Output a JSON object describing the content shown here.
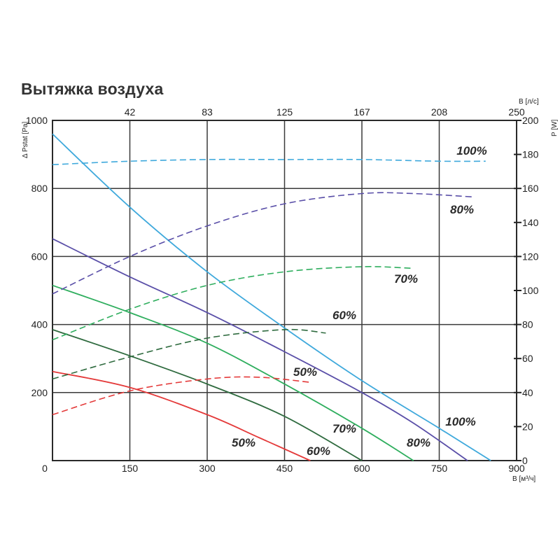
{
  "title": "Вытяжка воздуха",
  "chart_data": {
    "type": "line",
    "xlabel": "В [м³/ч]",
    "x2label": "В [л/с]",
    "ylabel": "Δ Pstat [Pa]",
    "y2label": "P [W]",
    "xlim": [
      0,
      900
    ],
    "ylim": [
      0,
      1000
    ],
    "y2lim": [
      0,
      200
    ],
    "x_ticks": [
      "0",
      "150",
      "300",
      "450",
      "600",
      "750",
      "900"
    ],
    "x2_ticks": [
      "42",
      "83",
      "125",
      "167",
      "208",
      "250"
    ],
    "y_ticks": [
      "200",
      "400",
      "600",
      "800",
      "1000"
    ],
    "y2_ticks": [
      "0",
      "20",
      "40",
      "60",
      "80",
      "100",
      "120",
      "140",
      "160",
      "180",
      "200"
    ],
    "grid": true,
    "colors": {
      "100%": "#3fa9dc",
      "80%": "#5a4fa8",
      "70%": "#2fae5e",
      "60%": "#2f6b3f",
      "50%": "#e43a3a"
    },
    "pressure_series": [
      {
        "name": "100%",
        "label": "100%",
        "x": [
          0,
          150,
          300,
          450,
          600,
          750,
          850
        ],
        "y": [
          960,
          745,
          555,
          390,
          235,
          95,
          0
        ]
      },
      {
        "name": "80%",
        "label": "80%",
        "x": [
          0,
          150,
          300,
          450,
          600,
          700,
          805
        ],
        "y": [
          652,
          540,
          435,
          320,
          200,
          110,
          0
        ]
      },
      {
        "name": "70%",
        "label": "70%",
        "x": [
          0,
          150,
          300,
          450,
          600,
          700
        ],
        "y": [
          515,
          435,
          345,
          225,
          95,
          0
        ]
      },
      {
        "name": "60%",
        "label": "60%",
        "x": [
          0,
          150,
          300,
          450,
          600
        ],
        "y": [
          385,
          308,
          225,
          130,
          0
        ]
      },
      {
        "name": "50%",
        "label": "50%",
        "x": [
          0,
          150,
          300,
          400,
          500
        ],
        "y": [
          262,
          215,
          135,
          68,
          0
        ]
      }
    ],
    "power_series": [
      {
        "name": "100%",
        "label": "100%",
        "axis": "right",
        "x": [
          0,
          150,
          300,
          450,
          600,
          750,
          840
        ],
        "y": [
          174,
          176,
          177,
          177,
          177,
          176,
          176
        ]
      },
      {
        "name": "80%",
        "label": "80%",
        "axis": "right",
        "x": [
          0,
          150,
          300,
          450,
          600,
          700,
          815
        ],
        "y": [
          98,
          120,
          138,
          151,
          157,
          157,
          155
        ]
      },
      {
        "name": "70%",
        "label": "70%",
        "axis": "right",
        "x": [
          0,
          150,
          300,
          450,
          600,
          700
        ],
        "y": [
          71,
          89,
          103,
          111,
          114,
          113
        ]
      },
      {
        "name": "60%",
        "label": "60%",
        "axis": "right",
        "x": [
          0,
          150,
          300,
          450,
          530
        ],
        "y": [
          48,
          61,
          72,
          77,
          75
        ]
      },
      {
        "name": "50%",
        "label": "50%",
        "axis": "right",
        "x": [
          0,
          150,
          300,
          400,
          500
        ],
        "y": [
          27,
          41,
          48,
          49,
          46
        ]
      }
    ]
  }
}
